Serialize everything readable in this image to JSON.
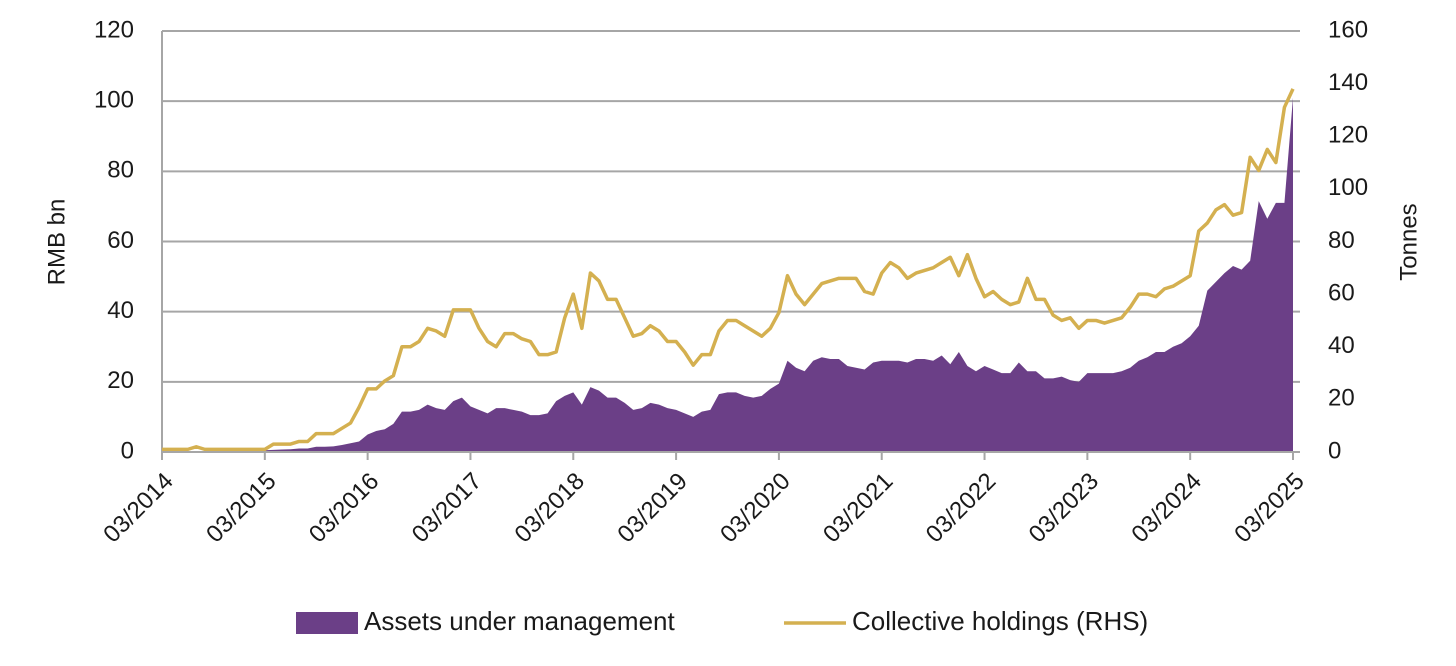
{
  "chart_data": {
    "type": "area-line",
    "x": [
      "03/2014",
      "04/2014",
      "05/2014",
      "06/2014",
      "07/2014",
      "08/2014",
      "09/2014",
      "10/2014",
      "11/2014",
      "12/2014",
      "01/2015",
      "02/2015",
      "03/2015",
      "04/2015",
      "05/2015",
      "06/2015",
      "07/2015",
      "08/2015",
      "09/2015",
      "10/2015",
      "11/2015",
      "12/2015",
      "01/2016",
      "02/2016",
      "03/2016",
      "04/2016",
      "05/2016",
      "06/2016",
      "07/2016",
      "08/2016",
      "09/2016",
      "10/2016",
      "11/2016",
      "12/2016",
      "01/2017",
      "02/2017",
      "03/2017",
      "04/2017",
      "05/2017",
      "06/2017",
      "07/2017",
      "08/2017",
      "09/2017",
      "10/2017",
      "11/2017",
      "12/2017",
      "01/2018",
      "02/2018",
      "03/2018",
      "04/2018",
      "05/2018",
      "06/2018",
      "07/2018",
      "08/2018",
      "09/2018",
      "10/2018",
      "11/2018",
      "12/2018",
      "01/2019",
      "02/2019",
      "03/2019",
      "04/2019",
      "05/2019",
      "06/2019",
      "07/2019",
      "08/2019",
      "09/2019",
      "10/2019",
      "11/2019",
      "12/2019",
      "01/2020",
      "02/2020",
      "03/2020",
      "04/2020",
      "05/2020",
      "06/2020",
      "07/2020",
      "08/2020",
      "09/2020",
      "10/2020",
      "11/2020",
      "12/2020",
      "01/2021",
      "02/2021",
      "03/2021",
      "04/2021",
      "05/2021",
      "06/2021",
      "07/2021",
      "08/2021",
      "09/2021",
      "10/2021",
      "11/2021",
      "12/2021",
      "01/2022",
      "02/2022",
      "03/2022",
      "04/2022",
      "05/2022",
      "06/2022",
      "07/2022",
      "08/2022",
      "09/2022",
      "10/2022",
      "11/2022",
      "12/2022",
      "01/2023",
      "02/2023",
      "03/2023",
      "04/2023",
      "05/2023",
      "06/2023",
      "07/2023",
      "08/2023",
      "09/2023",
      "10/2023",
      "11/2023",
      "12/2023",
      "01/2024",
      "02/2024",
      "03/2024",
      "04/2024",
      "05/2024",
      "06/2024",
      "07/2024",
      "08/2024",
      "09/2024",
      "10/2024",
      "11/2024",
      "12/2024",
      "01/2025",
      "02/2025",
      "03/2025"
    ],
    "xticks": [
      "03/2014",
      "03/2015",
      "03/2016",
      "03/2017",
      "03/2018",
      "03/2019",
      "03/2020",
      "03/2021",
      "03/2022",
      "03/2023",
      "03/2024",
      "03/2025"
    ],
    "series": [
      {
        "name": "Assets under management",
        "color": "#6b3f87",
        "kind": "area",
        "values": [
          0.3,
          0.3,
          0.3,
          0.3,
          0.3,
          0.3,
          0.3,
          0.3,
          0.3,
          0.3,
          0.3,
          0.3,
          0.5,
          0.6,
          0.7,
          0.8,
          1,
          1,
          1.5,
          1.5,
          1.6,
          2,
          2.5,
          3,
          5,
          6,
          6.5,
          8,
          11.5,
          11.5,
          12,
          13.5,
          12.5,
          12,
          14.5,
          15.5,
          13,
          12,
          11,
          12.5,
          12.5,
          12,
          11.5,
          10.5,
          10.5,
          11,
          14.5,
          16,
          17,
          13.5,
          18.5,
          17.5,
          15.5,
          15.5,
          14,
          12,
          12.5,
          14,
          13.5,
          12.5,
          12,
          11,
          10,
          11.5,
          12,
          16.5,
          17,
          17,
          16,
          15.5,
          16,
          18,
          19.5,
          26,
          24,
          23,
          26,
          27,
          26.5,
          26.5,
          24.5,
          24,
          23.5,
          25.5,
          26,
          26,
          26,
          25.5,
          26.5,
          26.5,
          26,
          27.5,
          25,
          28.5,
          24.5,
          23,
          24.5,
          23.5,
          22.5,
          22.5,
          25.5,
          23,
          23,
          21,
          21,
          21.5,
          20.5,
          20,
          22.5,
          22.5,
          22.5,
          22.5,
          23,
          24,
          26,
          27,
          28.5,
          28.5,
          30,
          31,
          33,
          36,
          46,
          48.5,
          51,
          53,
          52,
          54.5,
          71.5,
          66.5,
          71,
          71,
          101
        ]
      },
      {
        "name": "Collective holdings (RHS)",
        "color": "#d4b050",
        "kind": "line",
        "axis": "y2",
        "values": [
          1,
          1,
          1,
          1,
          2,
          1,
          1,
          1,
          1,
          1,
          1,
          1,
          1,
          3,
          3,
          3,
          4,
          4,
          7,
          7,
          7,
          9,
          11,
          17,
          24,
          24,
          27,
          29,
          40,
          40,
          42,
          47,
          46,
          44,
          54,
          54,
          54,
          47,
          42,
          40,
          45,
          45,
          43,
          42,
          37,
          37,
          38,
          51,
          60,
          47,
          68,
          65,
          58,
          58,
          51,
          44,
          45,
          48,
          46,
          42,
          42,
          38,
          33,
          37,
          37,
          46,
          50,
          50,
          48,
          46,
          44,
          47,
          53,
          67,
          60,
          56,
          60,
          64,
          65,
          66,
          66,
          66,
          61,
          60,
          68,
          72,
          70,
          66,
          68,
          69,
          70,
          72,
          74,
          67,
          75,
          66,
          59,
          61,
          58,
          56,
          57,
          66,
          58,
          58,
          52,
          50,
          51,
          47,
          50,
          50,
          49,
          50,
          51,
          55,
          60,
          60,
          59,
          62,
          63,
          65,
          67,
          84,
          87,
          92,
          94,
          90,
          91,
          112,
          107,
          115,
          110,
          131,
          138
        ]
      }
    ],
    "ylabel": "RMB bn",
    "y2label": "Tonnes",
    "ylim": [
      0,
      120
    ],
    "yticks": [
      0,
      20,
      40,
      60,
      80,
      100,
      120
    ],
    "y2lim": [
      0,
      160
    ],
    "y2ticks": [
      0,
      20,
      40,
      60,
      80,
      100,
      120,
      140,
      160
    ],
    "grid": true
  }
}
